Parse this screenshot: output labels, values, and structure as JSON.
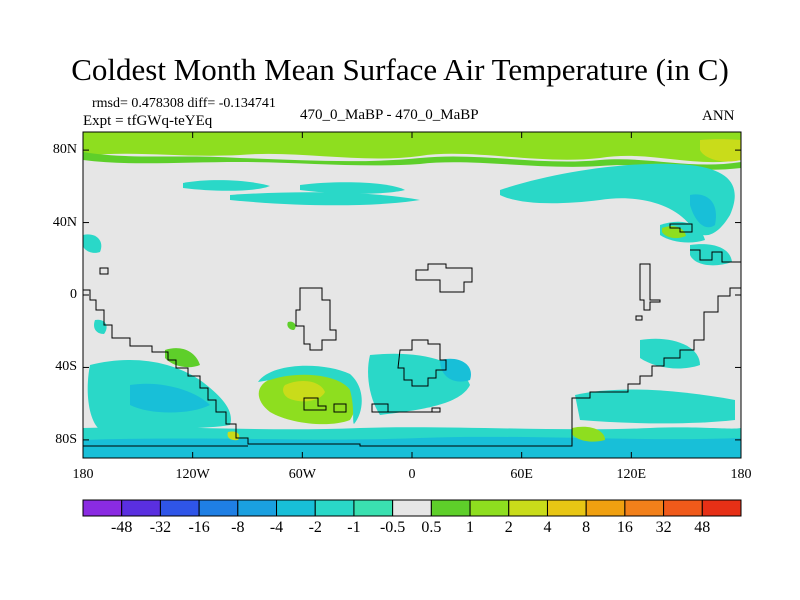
{
  "title": "Coldest Month Mean Surface Air Temperature (in C)",
  "stats": "rmsd= 0.478308 diff= -0.134741",
  "experiment": "Expt = tfGWq-teYEq",
  "case": "470_0_MaBP - 470_0_MaBP",
  "season": "ANN",
  "map": {
    "y_ticks": [
      {
        "lat": 80,
        "label": "80N"
      },
      {
        "lat": 40,
        "label": "40N"
      },
      {
        "lat": 0,
        "label": "0"
      },
      {
        "lat": -40,
        "label": "40S"
      },
      {
        "lat": -80,
        "label": "80S"
      }
    ],
    "x_ticks": [
      {
        "lon": -180,
        "label": "180"
      },
      {
        "lon": -120,
        "label": "120W"
      },
      {
        "lon": -60,
        "label": "60W"
      },
      {
        "lon": 0,
        "label": "0"
      },
      {
        "lon": 60,
        "label": "60E"
      },
      {
        "lon": 120,
        "label": "120E"
      },
      {
        "lon": 180,
        "label": "180"
      }
    ],
    "lon_range": [
      -180,
      180
    ],
    "lat_range": [
      -90,
      90
    ]
  },
  "colorbar": {
    "colors": [
      "#8a2be2",
      "#5a2fe0",
      "#2f55e8",
      "#1f7fe4",
      "#1aa0e0",
      "#18bfd8",
      "#2ad8c8",
      "#3ae0b0",
      "#e6e6e6",
      "#5ecf2a",
      "#8ede1f",
      "#c9dc1a",
      "#e8c614",
      "#f0a010",
      "#f2801a",
      "#f05a1a",
      "#e63016"
    ],
    "labels": [
      "-48",
      "-32",
      "-16",
      "-8",
      "-4",
      "-2",
      "-1",
      "-0.5",
      "0.5",
      "1",
      "2",
      "4",
      "8",
      "16",
      "32",
      "48"
    ]
  }
}
